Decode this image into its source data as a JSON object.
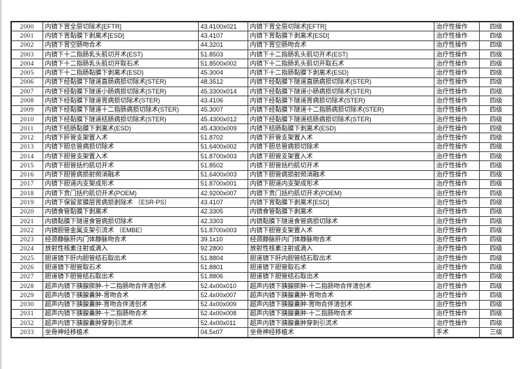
{
  "document": {
    "type": "procedure-grading-table",
    "text_color": "#111111",
    "border_color": "#3f3f3f",
    "background": "#ffffff"
  },
  "table": {
    "columns": [
      {
        "key": "id",
        "name": "sequence-number"
      },
      {
        "key": "name",
        "name": "procedure-name"
      },
      {
        "key": "code",
        "name": "procedure-code"
      },
      {
        "key": "name2",
        "name": "procedure-name-repeat"
      },
      {
        "key": "category",
        "name": "operation-category"
      },
      {
        "key": "level",
        "name": "grade-level"
      }
    ],
    "rows": [
      {
        "id": "2000",
        "name": "内镜下胃全层切除术[EFTR]",
        "code": "43.4100x021",
        "name2": "内镜下胃全层切除术[EFTR]",
        "category": "治疗性操作",
        "level": "四级"
      },
      {
        "id": "2001",
        "name": "内镜下胃黏膜下剥离术[ESD]",
        "code": "43.4107",
        "name2": "内镜下胃黏膜下剥离术[ESD]",
        "category": "治疗性操作",
        "level": "四级"
      },
      {
        "id": "2002",
        "name": "内镜下胃空肠吻合术",
        "code": "44.3201",
        "name2": "内镜下胃空肠吻合术",
        "category": "治疗性操作",
        "level": "四级"
      },
      {
        "id": "2003",
        "name": "内镜下十二指肠乳头肌切开术(EST)",
        "code": "51.8503",
        "name2": "内镜下十二指肠乳头肌切开术(EST)",
        "category": "治疗性操作",
        "level": "四级"
      },
      {
        "id": "2004",
        "name": "内镜下十二指肠乳头肌切开取石术",
        "code": "51.8500x002",
        "name2": "内镜下十二指肠乳头肌切开取石术",
        "category": "治疗性操作",
        "level": "四级"
      },
      {
        "id": "2005",
        "name": "内镜下十二指肠黏膜下剥离术(ESD)",
        "code": "45.3004",
        "name2": "内镜下十二指肠黏膜下剥离术(ESD)",
        "category": "治疗性操作",
        "level": "四级"
      },
      {
        "id": "2006",
        "name": "内镜下经黏膜下隧道直肠病损切除术(STER)",
        "code": "48.3512",
        "name2": "内镜下经黏膜下隧道直肠病损切除术(STER)",
        "category": "治疗性操作",
        "level": "四级"
      },
      {
        "id": "2007",
        "name": "内镜下经黏膜下隧道小肠病损切除术(STER)",
        "code": "45.3300x014",
        "name2": "内镜下经黏膜下隧道小肠病损切除术(STER)",
        "category": "治疗性操作",
        "level": "四级"
      },
      {
        "id": "2008",
        "name": "内镜下经黏膜下隧道胃病损切除术(STER)",
        "code": "43.4106",
        "name2": "内镜下经黏膜下隧道胃病损切除术(STER)",
        "category": "治疗性操作",
        "level": "四级"
      },
      {
        "id": "2009",
        "name": "内镜下经黏膜下隧道十二指肠病损切除术(STER)",
        "code": "45.3007",
        "name2": "内镜下经黏膜下隧道十二指肠病损切除术(STER)",
        "category": "治疗性操作",
        "level": "四级"
      },
      {
        "id": "2010",
        "name": "内镜下经黏膜下隧道结肠病损切除术(STER)",
        "code": "45.4300x012",
        "name2": "内镜下经黏膜下隧道结肠病损切除术(STER)",
        "category": "治疗性操作",
        "level": "四级"
      },
      {
        "id": "2011",
        "name": "内镜下结肠黏膜下剥离术(ESD)",
        "code": "45.4300x009",
        "name2": "内镜下结肠黏膜下剥离术(ESD)",
        "category": "治疗性操作",
        "level": "四级"
      },
      {
        "id": "2012",
        "name": "内镜下肝管支架置入术",
        "code": "51.8702",
        "name2": "内镜下肝管支架置入术",
        "category": "治疗性操作",
        "level": "四级"
      },
      {
        "id": "2013",
        "name": "内镜下胆总管病损切除术",
        "code": "51.6400x002",
        "name2": "内镜下胆总管病损切除术",
        "category": "治疗性操作",
        "level": "四级"
      },
      {
        "id": "2014",
        "name": "内镜下胆管支架置入术",
        "code": "51.8700x003",
        "name2": "内镜下胆管支架置入术",
        "category": "治疗性操作",
        "level": "四级"
      },
      {
        "id": "2015",
        "name": "内镜下胆管括约肌切开术",
        "code": "51.8502",
        "name2": "内镜下胆管括约肌切开术",
        "category": "治疗性操作",
        "level": "四级"
      },
      {
        "id": "2016",
        "name": "内镜下胆管病损射频消融术",
        "code": "51.6400x003",
        "name2": "内镜下胆管病损射频消融术",
        "category": "治疗性操作",
        "level": "四级"
      },
      {
        "id": "2017",
        "name": "内镜下胆道内支架成形术",
        "code": "51.8700x001",
        "name2": "内镜下胆道内支架成形术",
        "category": "治疗性操作",
        "level": "四级"
      },
      {
        "id": "2018",
        "name": "内镜下贲门括约肌切开术(POEM)",
        "code": "42.9200x007",
        "name2": "内镜下贲门括约肌切开术(POEM)",
        "category": "治疗性操作",
        "level": "四级"
      },
      {
        "id": "2019",
        "name": "内镜下保留浆膜层胃病损剥除术 （ESR-PS）",
        "code": "43.4107",
        "name2": "内镜下胃黏膜下剥离术[ESD]",
        "category": "治疗性操作",
        "level": "四级"
      },
      {
        "id": "2020",
        "name": "内镜食管黏膜下剥离术",
        "code": "42.3305",
        "name2": "内镜食管黏膜下剥离术",
        "category": "治疗性操作",
        "level": "四级"
      },
      {
        "id": "2021",
        "name": "内镜黏膜下隧道食管病损切除术",
        "code": "42.3303",
        "name2": "内镜黏膜下隧道食管病损切除术",
        "category": "治疗性操作",
        "level": "四级"
      },
      {
        "id": "2022",
        "name": "内镜胆管金属支架引流术 （EMBE）",
        "code": "51.8700x003",
        "name2": "内镜下胆管支架置入术",
        "category": "治疗性操作",
        "level": "四级"
      },
      {
        "id": "2023",
        "name": "经颈静脉肝内门体静脉吻合术",
        "code": "39.1x10",
        "name2": "经颈静脉肝内门体静脉吻合术",
        "category": "治疗性操作",
        "level": "四级"
      },
      {
        "id": "2024",
        "name": "放射性核素注射或滴入",
        "code": "92.2800",
        "name2": "放射性核素注射或滴入",
        "category": "治疗性操作",
        "level": "四级"
      },
      {
        "id": "2025",
        "name": "胆道镜下肝内胆管结石取出术",
        "code": "51.8804",
        "name2": "胆道镜下肝内胆管结石取出术",
        "category": "治疗性操作",
        "level": "四级"
      },
      {
        "id": "2026",
        "name": "胆道镜下胆管取石术",
        "code": "51.8801",
        "name2": "胆道镜下胆管取石术",
        "category": "治疗性操作",
        "level": "四级"
      },
      {
        "id": "2027",
        "name": "胆道镜下胆管结石取出术",
        "code": "51.8806",
        "name2": "胆道镜下胆管结石取出术",
        "category": "治疗性操作",
        "level": "四级"
      },
      {
        "id": "2028",
        "name": "超声内镜下胰腺脓肿-十二指肠吻合伴清创术",
        "code": "52.4x00x010",
        "name2": "超声内镜下胰腺脓肿-十二指肠吻合伴清创术",
        "category": "治疗性操作",
        "level": "四级"
      },
      {
        "id": "2029",
        "name": "超声内镜下胰腺囊肿-胃吻合术",
        "code": "52.4x00x007",
        "name2": "超声内镜下胰腺囊肿-胃吻合术",
        "category": "治疗性操作",
        "level": "四级"
      },
      {
        "id": "2030",
        "name": "超声内镜下胰腺囊肿-胃吻合伴清创术",
        "code": "52.4x00x009",
        "name2": "超声内镜下胰腺囊肿-胃吻合伴清创术",
        "category": "治疗性操作",
        "level": "四级"
      },
      {
        "id": "2031",
        "name": "超声内镜下胰腺囊肿-十二指肠吻合术",
        "code": "52.4x00x008",
        "name2": "超声内镜下胰腺囊肿-十二指肠吻合术",
        "category": "治疗性操作",
        "level": "四级"
      },
      {
        "id": "2032",
        "name": "超声内镜下胰腺囊肿穿刺引流术",
        "code": "52.4x00x011",
        "name2": "超声内镜下胰腺囊肿穿刺引流术",
        "category": "治疗性操作",
        "level": "四级"
      },
      {
        "id": "2033",
        "name": "坐骨神经移植术",
        "code": "04.5x07",
        "name2": "坐骨神经移植术",
        "category": "手术",
        "level": "三级"
      }
    ]
  }
}
